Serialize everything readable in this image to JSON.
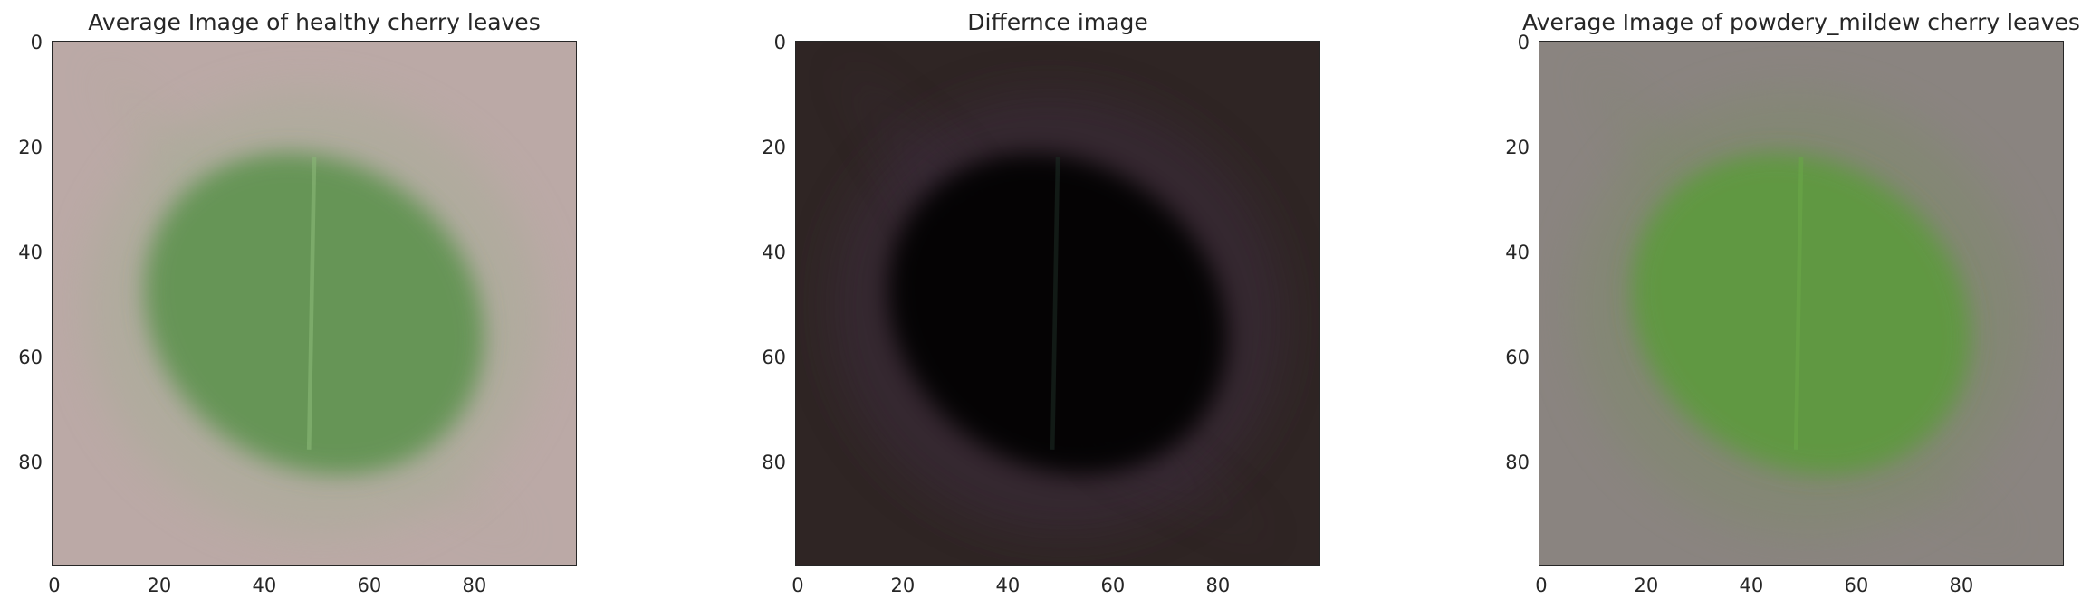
{
  "chart_data": [
    {
      "type": "heatmap",
      "title": "Average Image of healthy cherry leaves",
      "xlabel": "",
      "ylabel": "",
      "xlim": [
        0,
        100
      ],
      "ylim": [
        100,
        0
      ],
      "x_ticks": [
        0,
        20,
        40,
        60,
        80
      ],
      "y_ticks": [
        0,
        20,
        40,
        60,
        80
      ],
      "background_color": "#bba9a6",
      "leaf_color": "#5f9350",
      "description_colors": {
        "outer_halo": "#a7ad97",
        "center_vein": "#8ab877"
      }
    },
    {
      "type": "heatmap",
      "title": "Differnce image",
      "xlabel": "",
      "ylabel": "",
      "xlim": [
        0,
        100
      ],
      "ylim": [
        100,
        0
      ],
      "x_ticks": [
        0,
        20,
        40,
        60,
        80
      ],
      "y_ticks": [
        0,
        20,
        40,
        60,
        80
      ],
      "background_color": "#2f2524",
      "leaf_color": "#050306",
      "description_colors": {
        "outer_halo": "#3b2a3b",
        "center_vein": "#1b2a23"
      }
    },
    {
      "type": "heatmap",
      "title": "Average Image of powdery_mildew cherry leaves",
      "xlabel": "",
      "ylabel": "",
      "xlim": [
        0,
        100
      ],
      "ylim": [
        100,
        0
      ],
      "x_ticks": [
        0,
        20,
        40,
        60,
        80
      ],
      "y_ticks": [
        0,
        20,
        40,
        60,
        80
      ],
      "background_color": "#8a8480",
      "leaf_color": "#5d9a3c",
      "description_colors": {
        "outer_halo": "#7f8a6c",
        "center_vein": "#6aa848"
      }
    }
  ]
}
